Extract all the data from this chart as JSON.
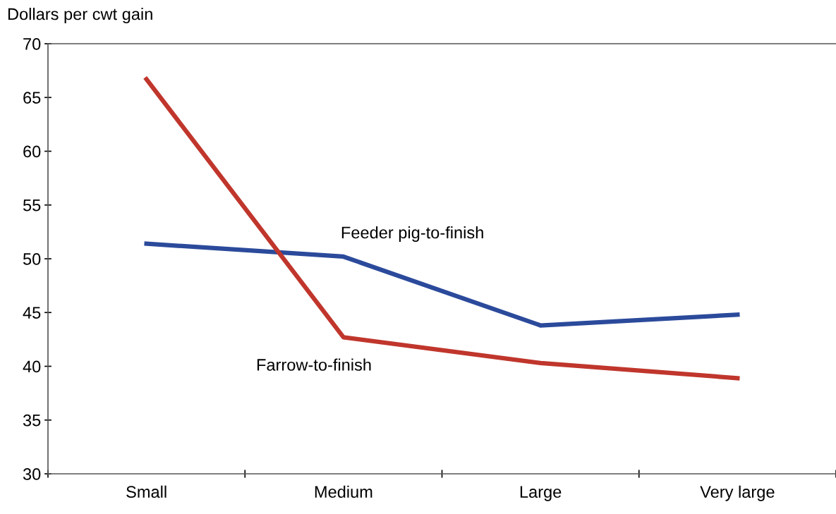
{
  "chart_data": {
    "type": "line",
    "ylabel": "Dollars per cwt gain",
    "categories": [
      "Small",
      "Medium",
      "Large",
      "Very large"
    ],
    "series": [
      {
        "name": "Feeder pig-to-finish",
        "color": "#2b4a9b",
        "values": [
          51.4,
          50.2,
          43.8,
          44.8
        ]
      },
      {
        "name": "Farrow-to-finish",
        "color": "#c0362c",
        "values": [
          66.7,
          42.7,
          40.3,
          38.9
        ]
      }
    ],
    "ylim": [
      30,
      70
    ],
    "yticks": [
      30,
      35,
      40,
      45,
      50,
      55,
      60,
      65,
      70
    ],
    "grid": false,
    "legend": false,
    "marker": "none",
    "line_style": "solid"
  }
}
